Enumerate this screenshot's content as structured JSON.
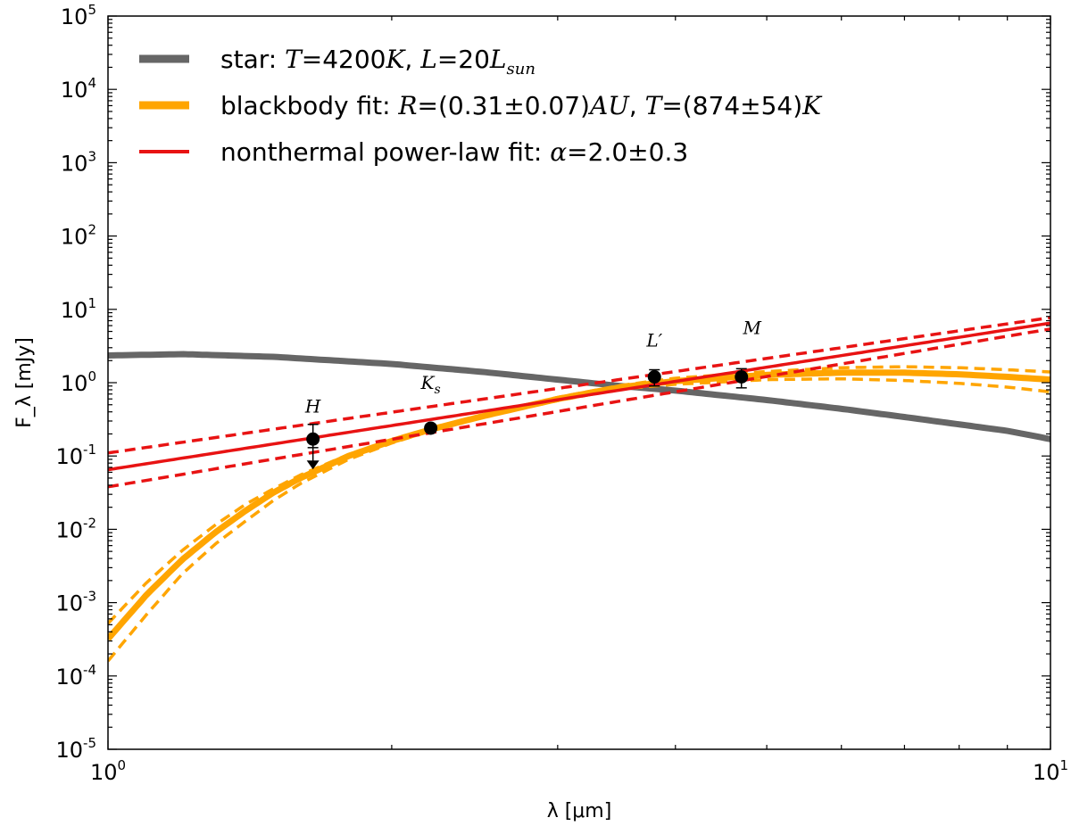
{
  "chart_data": {
    "type": "line",
    "xlabel": "λ [μm]",
    "ylabel": "F_λ [mJy]",
    "xscale": "log",
    "yscale": "log",
    "xlim": [
      1,
      10
    ],
    "ylim": [
      1e-05,
      100000.0
    ],
    "x_ticks": [
      {
        "base": "10",
        "exp": "0"
      },
      {
        "base": "10",
        "exp": "1"
      }
    ],
    "y_ticks": [
      {
        "base": "10",
        "exp": "-5"
      },
      {
        "base": "10",
        "exp": "-4"
      },
      {
        "base": "10",
        "exp": "-3"
      },
      {
        "base": "10",
        "exp": "-2"
      },
      {
        "base": "10",
        "exp": "-1"
      },
      {
        "base": "10",
        "exp": "0"
      },
      {
        "base": "10",
        "exp": "1"
      },
      {
        "base": "10",
        "exp": "2"
      },
      {
        "base": "10",
        "exp": "3"
      },
      {
        "base": "10",
        "exp": "4"
      },
      {
        "base": "10",
        "exp": "5"
      }
    ],
    "legend": {
      "position": "top-left",
      "entries": [
        {
          "series": "star",
          "text": "star: T=4200K, L=20L_sun"
        },
        {
          "series": "blackbody",
          "text": "blackbody fit: R=(0.31±0.07)AU, T=(874±54)K"
        },
        {
          "series": "powerlaw",
          "text": "nonthermal power-law fit: α=2.0±0.3"
        }
      ]
    },
    "series": [
      {
        "id": "star",
        "color": "#666666",
        "x": [
          1.0,
          1.2,
          1.5,
          2.0,
          2.5,
          3.0,
          3.5,
          4.0,
          5.0,
          6.0,
          7.0,
          8.0,
          9.0,
          10.0
        ],
        "y": [
          2.35,
          2.45,
          2.25,
          1.8,
          1.4,
          1.1,
          0.9,
          0.78,
          0.58,
          0.44,
          0.34,
          0.27,
          0.22,
          0.17
        ]
      },
      {
        "id": "blackbody",
        "color": "#FFA500",
        "x": [
          1.0,
          1.1,
          1.2,
          1.3,
          1.4,
          1.5,
          1.6,
          1.8,
          2.0,
          2.2,
          2.5,
          3.0,
          3.5,
          4.0,
          5.0,
          6.0,
          7.0,
          8.0,
          9.0,
          10.0
        ],
        "y": [
          0.00032,
          0.0013,
          0.0039,
          0.0091,
          0.018,
          0.032,
          0.05,
          0.1,
          0.16,
          0.23,
          0.35,
          0.6,
          0.87,
          1.05,
          1.28,
          1.37,
          1.37,
          1.3,
          1.2,
          1.1
        ],
        "band_upper": [
          0.00052,
          0.0019,
          0.0052,
          0.0115,
          0.022,
          0.036,
          0.055,
          0.105,
          0.165,
          0.24,
          0.36,
          0.63,
          0.92,
          1.15,
          1.42,
          1.6,
          1.65,
          1.6,
          1.5,
          1.4
        ],
        "band_lower": [
          0.00016,
          0.0007,
          0.0025,
          0.0063,
          0.013,
          0.025,
          0.042,
          0.09,
          0.15,
          0.22,
          0.34,
          0.57,
          0.82,
          0.95,
          1.1,
          1.13,
          1.07,
          0.98,
          0.87,
          0.75
        ]
      },
      {
        "id": "powerlaw",
        "color": "#E81313",
        "x": [
          1.0,
          10.0
        ],
        "y": [
          0.065,
          6.5
        ],
        "band_upper": [
          0.11,
          7.7
        ],
        "band_lower": [
          0.038,
          5.4
        ]
      }
    ],
    "points": [
      {
        "label": "H",
        "sub": "",
        "x": 1.65,
        "y": 0.17,
        "err_low": 0.04,
        "err_high": 0.1,
        "upper_limit": true
      },
      {
        "label": "K",
        "sub": "s",
        "x": 2.2,
        "y": 0.24,
        "err_low": 0,
        "err_high": 0,
        "upper_limit": false
      },
      {
        "label": "L′",
        "sub": "",
        "x": 3.8,
        "y": 1.2,
        "err_low": 0.3,
        "err_high": 0.3,
        "upper_limit": false
      },
      {
        "label": "M",
        "sub": "",
        "x": 4.7,
        "y": 1.2,
        "err_low": 0.35,
        "err_high": 0.35,
        "upper_limit": false
      }
    ],
    "grid": false
  }
}
